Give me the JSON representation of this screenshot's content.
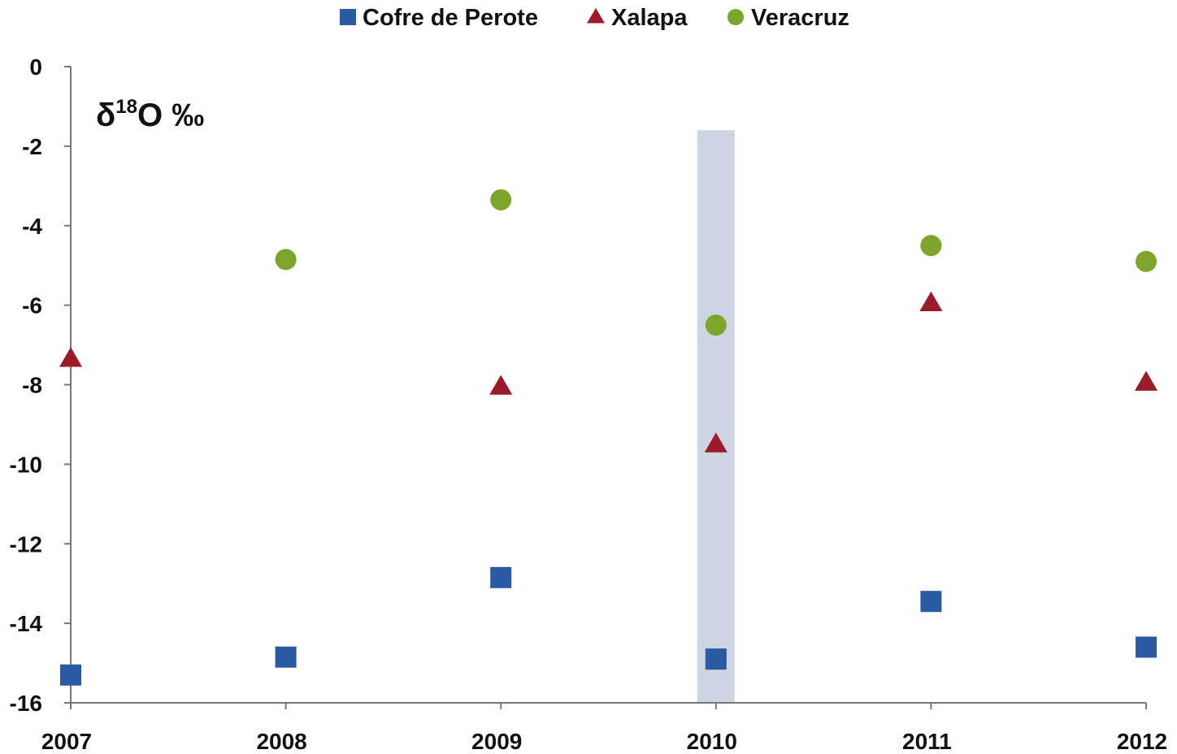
{
  "chart_data": {
    "type": "scatter",
    "title": "",
    "xlabel": "",
    "ylabel": {
      "prefix": "δ",
      "sup": "18",
      "suffix": "O ‰"
    },
    "x": [
      2007,
      2008,
      2009,
      2010,
      2011,
      2012
    ],
    "xlim": [
      2007,
      2012
    ],
    "ylim": [
      -16,
      0
    ],
    "yticks": [
      0,
      -2,
      -4,
      -6,
      -8,
      -10,
      -12,
      -14,
      -16
    ],
    "grid": false,
    "legend_position": "top",
    "highlight": {
      "x": 2010,
      "y_range": [
        -16,
        -1.6
      ],
      "color": "#cdd5e3"
    },
    "series": [
      {
        "name": "Cofre de Perote",
        "marker": "square",
        "color": "#2a5aa2",
        "points": [
          [
            2007,
            -15.3
          ],
          [
            2008,
            -14.85
          ],
          [
            2009,
            -12.85
          ],
          [
            2010,
            -14.9
          ],
          [
            2011,
            -13.45
          ],
          [
            2012,
            -14.6
          ]
        ]
      },
      {
        "name": "Xalapa",
        "marker": "triangle",
        "color": "#9b1b2a",
        "points": [
          [
            2007,
            -7.35
          ],
          [
            2009,
            -8.05
          ],
          [
            2010,
            -9.5
          ],
          [
            2011,
            -5.95
          ],
          [
            2012,
            -7.95
          ]
        ]
      },
      {
        "name": "Veracruz",
        "marker": "circle",
        "color": "#7ea52b",
        "points": [
          [
            2008,
            -4.85
          ],
          [
            2009,
            -3.35
          ],
          [
            2010,
            -6.5
          ],
          [
            2011,
            -4.5
          ],
          [
            2012,
            -4.9
          ]
        ]
      }
    ]
  }
}
